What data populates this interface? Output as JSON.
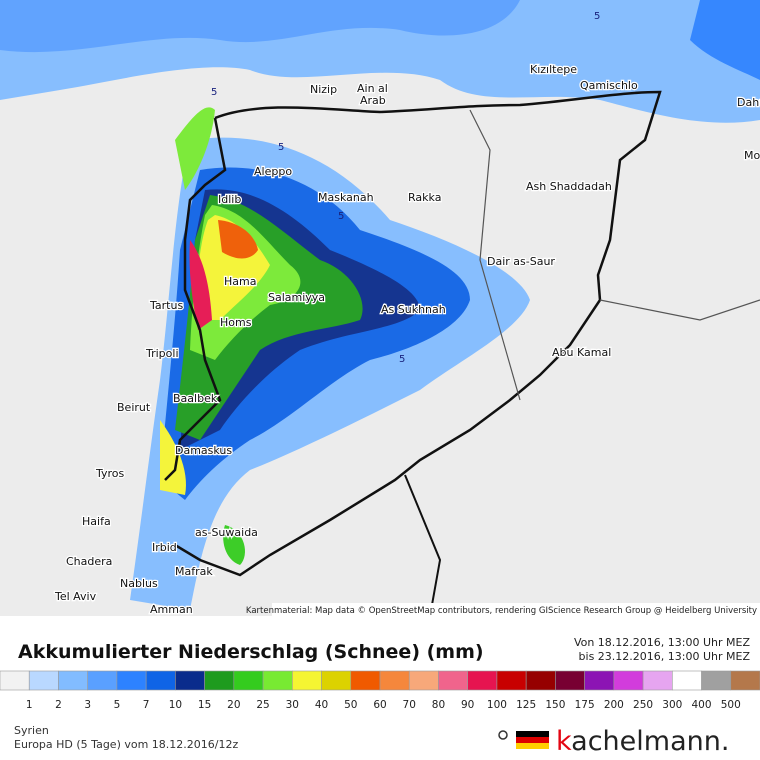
{
  "map": {
    "cities": [
      "Nizip",
      "Ain al",
      "Arab",
      "Kızıltepe",
      "Qamischlo",
      "Dahu",
      "Mo",
      "Aleppo",
      "Maskanah",
      "Rakka",
      "Ash Shaddadah",
      "Idlib",
      "Dair as-Saur",
      "Hama",
      "Salamiyya",
      "Tartus",
      "As Sukhnah",
      "Homs",
      "Abu Kamal",
      "Tripoli",
      "Baalbek",
      "Beirut",
      "Damaskus",
      "Tyros",
      "Haifa",
      "as-Suwaida",
      "Irbid",
      "Chadera",
      "Nablus",
      "Mafrak",
      "Tel Aviv",
      "Amman"
    ],
    "contour_labels": [
      "5",
      "5",
      "5",
      "5",
      "5"
    ],
    "attribution": "Kartenmaterial: Map data © OpenStreetMap contributors, rendering GIScience Research Group @ Heidelberg University"
  },
  "header": {
    "title": "Akkumulierter Niederschlag (Schnee) (mm)",
    "period": [
      "Von 18.12.2016, 13:00 Uhr MEZ",
      "bis 23.12.2016, 13:00 Uhr MEZ"
    ]
  },
  "legend": {
    "labels": [
      "1",
      "2",
      "3",
      "5",
      "7",
      "10",
      "15",
      "20",
      "25",
      "30",
      "40",
      "50",
      "60",
      "70",
      "80",
      "90",
      "100",
      "125",
      "150",
      "175",
      "200",
      "250",
      "300",
      "400",
      "500"
    ],
    "colors": [
      "#f2f2f2",
      "#b9d8ff",
      "#82bcff",
      "#5aa0ff",
      "#2d82ff",
      "#0f64e6",
      "#0a2c8c",
      "#1e9b1e",
      "#34cc1e",
      "#78ea32",
      "#f5f532",
      "#dcd200",
      "#f05a00",
      "#f5873c",
      "#f7a87a",
      "#f0648c",
      "#e61450",
      "#c80000",
      "#960000",
      "#780032",
      "#8c14b4",
      "#d23cdc",
      "#e6a5f0",
      "#ffffff",
      "#a0a0a0",
      "#b4784b"
    ]
  },
  "footer": {
    "region": "Syrien",
    "model": "Europa HD (5 Tage) vom 18.12.2016/12z",
    "brand_k": "k",
    "brand_rest": "achelmann."
  }
}
